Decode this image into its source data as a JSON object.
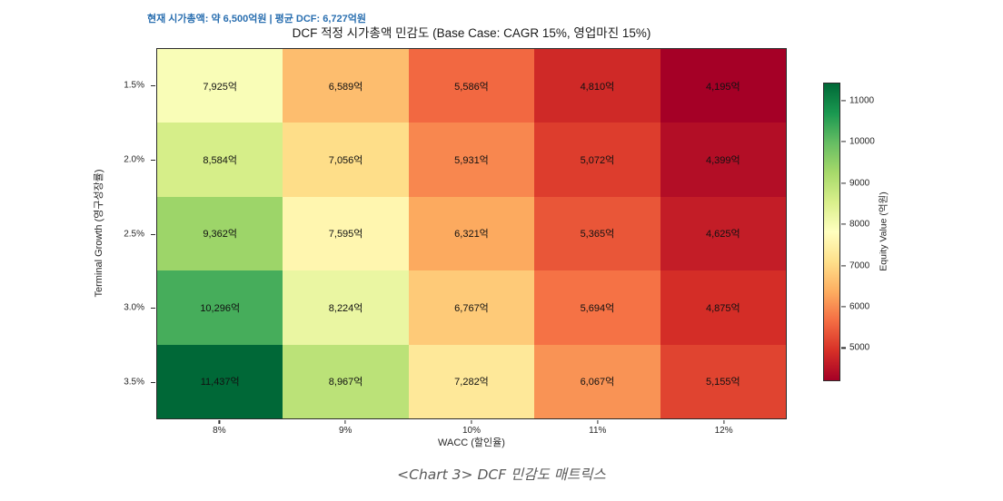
{
  "annotation": {
    "text": "현재 시가총액: 약 6,500억원 | 평균 DCF: 6,727억원",
    "color": "#2a6fb0"
  },
  "caption": "<Chart 3> DCF 민감도 매트릭스",
  "chart_data": {
    "type": "heatmap",
    "title": "DCF 적정 시가총액 민감도 (Base Case: CAGR 15%, 영업마진 15%)",
    "xlabel": "WACC (할인율)",
    "ylabel": "Terminal Growth (영구성장률)",
    "x_ticklabels": [
      "8%",
      "9%",
      "10%",
      "11%",
      "12%"
    ],
    "y_ticklabels": [
      "1.5%",
      "2.0%",
      "2.5%",
      "3.0%",
      "3.5%"
    ],
    "values": [
      [
        7925,
        6589,
        5586,
        4810,
        4195
      ],
      [
        8584,
        7056,
        5931,
        5072,
        4399
      ],
      [
        9362,
        7595,
        6321,
        5365,
        4625
      ],
      [
        10296,
        8224,
        6767,
        5694,
        4875
      ],
      [
        11437,
        8967,
        7282,
        6067,
        5155
      ]
    ],
    "value_suffix": "억",
    "colormap": "RdYlGn",
    "colormap_stops": [
      "#a50026",
      "#d73027",
      "#f46d43",
      "#fdae61",
      "#fee08b",
      "#ffffbf",
      "#d9ef8b",
      "#a6d96a",
      "#66bd63",
      "#1a9850",
      "#006837"
    ],
    "vmin": 4195,
    "vmax": 11437,
    "grid": false,
    "colorbar": {
      "label": "Equity Value (억원)",
      "ticks": [
        5000,
        6000,
        7000,
        8000,
        9000,
        10000,
        11000
      ]
    }
  }
}
